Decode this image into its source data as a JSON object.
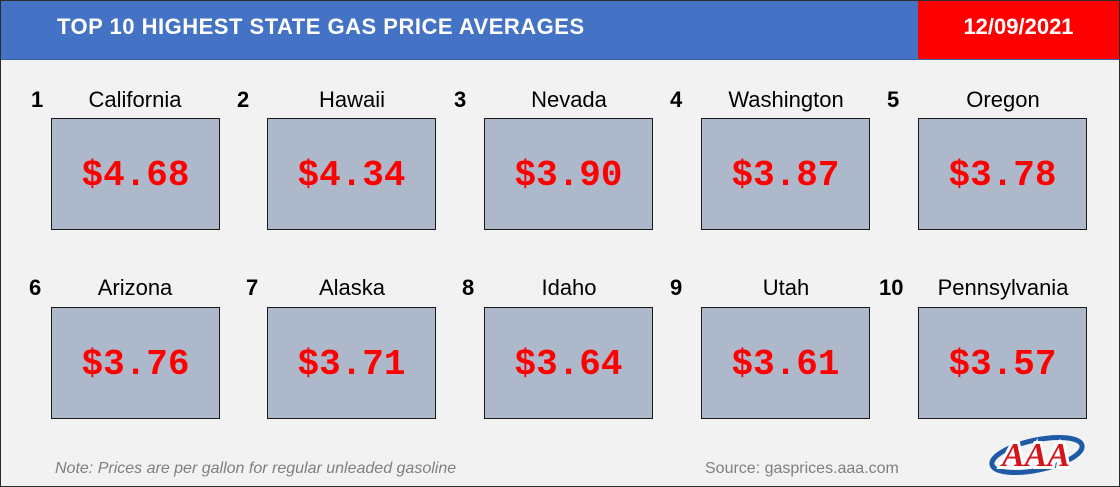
{
  "header": {
    "title": "TOP 10 HIGHEST STATE GAS PRICE AVERAGES",
    "date": "12/09/2021"
  },
  "states": [
    {
      "rank": "1",
      "name": "California",
      "price": "$4.68"
    },
    {
      "rank": "2",
      "name": "Hawaii",
      "price": "$4.34"
    },
    {
      "rank": "3",
      "name": "Nevada",
      "price": "$3.90"
    },
    {
      "rank": "4",
      "name": "Washington",
      "price": "$3.87"
    },
    {
      "rank": "5",
      "name": "Oregon",
      "price": "$3.78"
    },
    {
      "rank": "6",
      "name": "Arizona",
      "price": "$3.76"
    },
    {
      "rank": "7",
      "name": "Alaska",
      "price": "$3.71"
    },
    {
      "rank": "8",
      "name": "Idaho",
      "price": "$3.64"
    },
    {
      "rank": "9",
      "name": "Utah",
      "price": "$3.61"
    },
    {
      "rank": "10",
      "name": "Pennsylvania",
      "price": "$3.57"
    }
  ],
  "footer": {
    "note": "Note: Prices are per gallon for regular unleaded gasoline",
    "source": "Source: gasprices.aaa.com"
  },
  "logo": {
    "text": "AAA",
    "icon": "aaa-logo",
    "oval_color": "#1f5aa6",
    "letter_color": "#d7141a"
  },
  "colors": {
    "header_bg": "#4472c4",
    "date_bg": "#ff0000",
    "card_bg": "#adb9ca",
    "price_text": "#ff0000"
  }
}
